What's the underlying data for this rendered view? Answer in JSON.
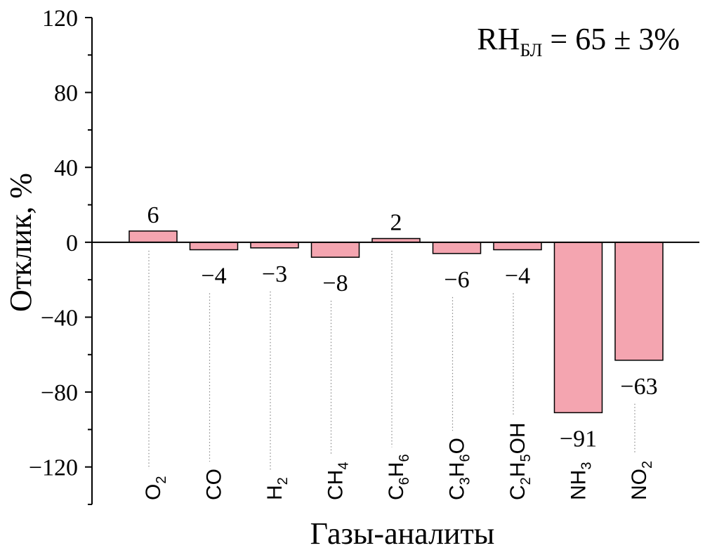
{
  "chart_data": {
    "type": "bar",
    "categories": [
      {
        "parts": [
          {
            "t": "O",
            "sub": false
          },
          {
            "t": "2",
            "sub": true
          }
        ]
      },
      {
        "parts": [
          {
            "t": "CO",
            "sub": false
          }
        ]
      },
      {
        "parts": [
          {
            "t": "H",
            "sub": false
          },
          {
            "t": "2",
            "sub": true
          }
        ]
      },
      {
        "parts": [
          {
            "t": "CH",
            "sub": false
          },
          {
            "t": "4",
            "sub": true
          }
        ]
      },
      {
        "parts": [
          {
            "t": "C",
            "sub": false
          },
          {
            "t": "6",
            "sub": true
          },
          {
            "t": "H",
            "sub": false
          },
          {
            "t": "6",
            "sub": true
          }
        ]
      },
      {
        "parts": [
          {
            "t": "C",
            "sub": false
          },
          {
            "t": "3",
            "sub": true
          },
          {
            "t": "H",
            "sub": false
          },
          {
            "t": "6",
            "sub": true
          },
          {
            "t": "O",
            "sub": false
          }
        ]
      },
      {
        "parts": [
          {
            "t": "C",
            "sub": false
          },
          {
            "t": "2",
            "sub": true
          },
          {
            "t": "H",
            "sub": false
          },
          {
            "t": "5",
            "sub": true
          },
          {
            "t": "OH",
            "sub": false
          }
        ]
      },
      {
        "parts": [
          {
            "t": "NH",
            "sub": false
          },
          {
            "t": "3",
            "sub": true
          }
        ]
      },
      {
        "parts": [
          {
            "t": "NO",
            "sub": false
          },
          {
            "t": "2",
            "sub": true
          }
        ]
      }
    ],
    "values": [
      6,
      -4,
      -3,
      -8,
      2,
      -6,
      -4,
      -91,
      -63
    ],
    "value_labels": [
      "6",
      "−4",
      "−3",
      "−8",
      "2",
      "−6",
      "−4",
      "−91",
      "−63"
    ],
    "ylim": [
      -140,
      120
    ],
    "yticks": [
      120,
      80,
      40,
      0,
      -40,
      -80,
      -120
    ],
    "ytick_labels": [
      "120",
      "80",
      "40",
      "0",
      "−40",
      "−80",
      "−120"
    ],
    "ylabel": "Отклик, %",
    "xlabel": "Газы-аналиты",
    "annotation": {
      "main": "RH",
      "sub": "БЛ",
      "rest": " = 65 ± 3%"
    },
    "bar_color": "#f4a5b0",
    "bar_edge_color": "#000000",
    "grid": false,
    "legend": "none"
  }
}
